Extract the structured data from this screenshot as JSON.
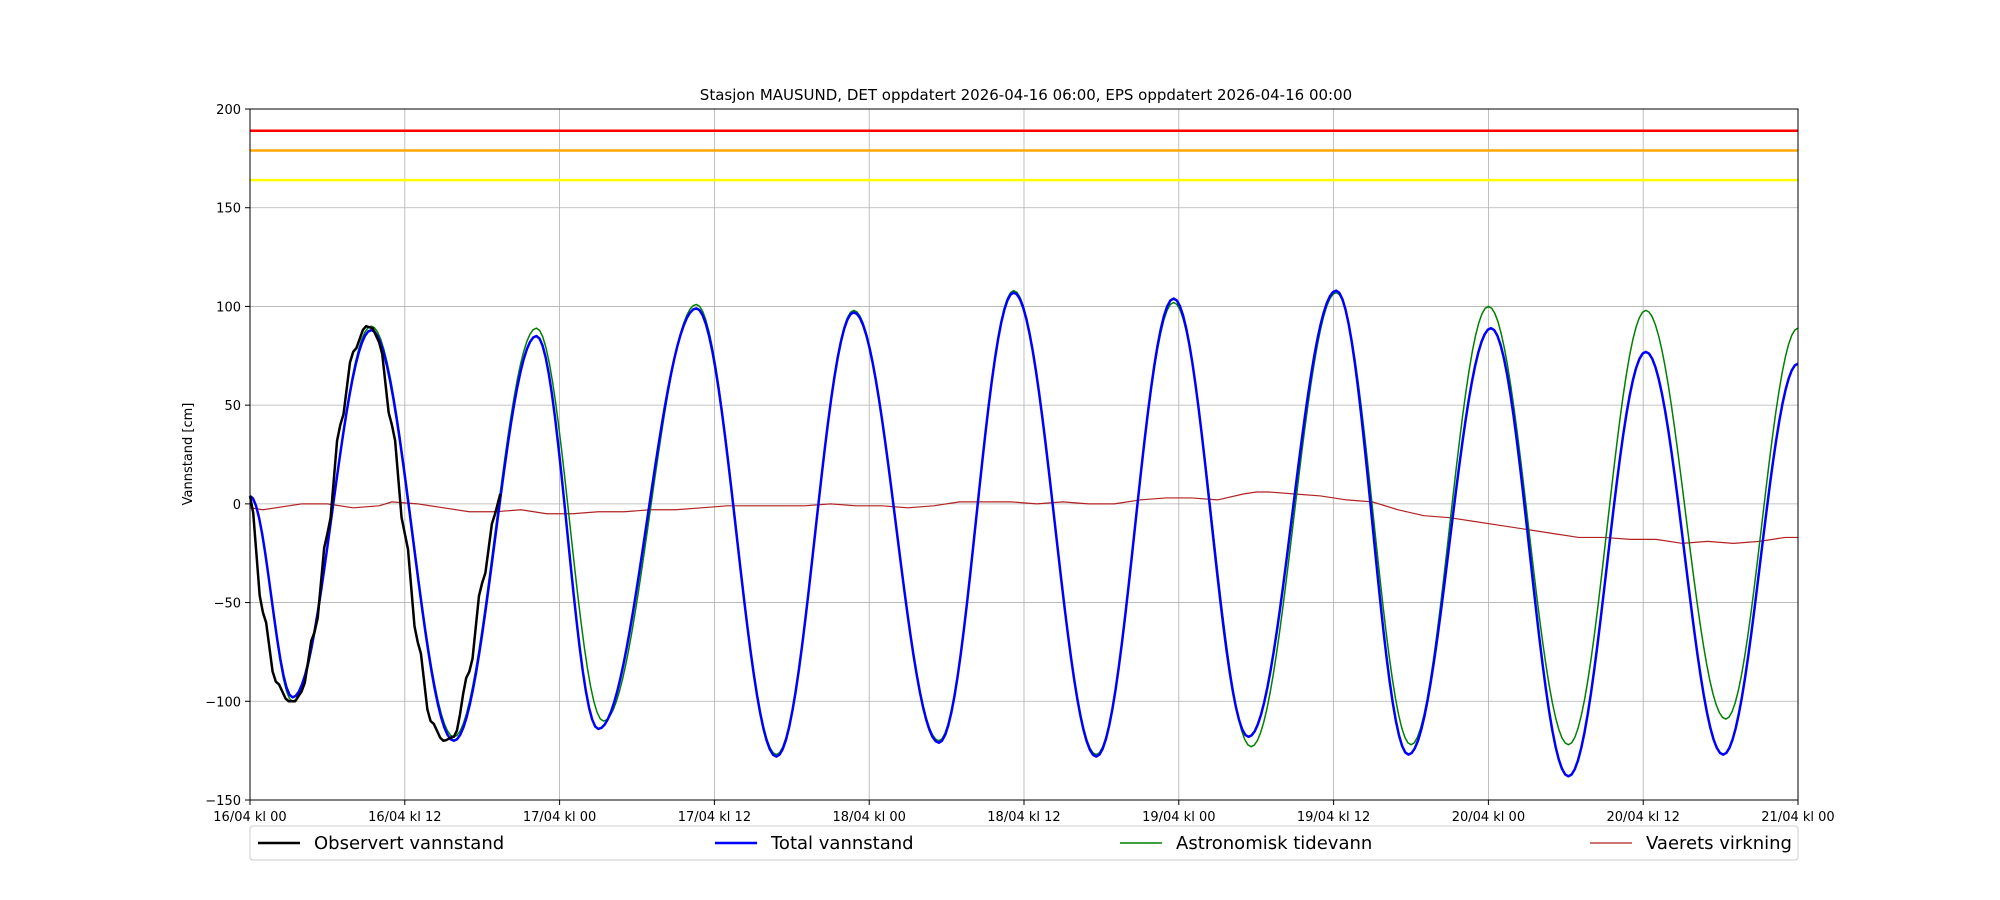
{
  "chart_data": {
    "type": "line",
    "title": "Stasjon MAUSUND, DET oppdatert 2026-04-16 06:00, EPS oppdatert 2026-04-16 00:00",
    "ylabel": "Vannstand [cm]",
    "xlabel": "",
    "xlim_hours": [
      0,
      120
    ],
    "ylim": [
      -150,
      200
    ],
    "grid": true,
    "legend_position": "bottom",
    "x_tick_hours": [
      0,
      12,
      24,
      36,
      48,
      60,
      72,
      84,
      96,
      108,
      120
    ],
    "x_tick_labels": [
      "16/04 kl 00",
      "16/04 kl 12",
      "17/04 kl 00",
      "17/04 kl 12",
      "18/04 kl 00",
      "18/04 kl 12",
      "19/04 kl 00",
      "19/04 kl 12",
      "20/04 kl 00",
      "20/04 kl 12",
      "21/04 kl 00"
    ],
    "y_ticks": [
      -150,
      -100,
      -50,
      0,
      50,
      100,
      150,
      200
    ],
    "y_tick_labels": [
      "−150",
      "−100",
      "−50",
      "0",
      "50",
      "100",
      "150",
      "200"
    ],
    "threshold_lines": [
      {
        "value": 189,
        "color": "#ff0000"
      },
      {
        "value": 179,
        "color": "#ffa500"
      },
      {
        "value": 164,
        "color": "#ffff00"
      }
    ],
    "series": [
      {
        "name": "Observert vannstand",
        "color": "#000000",
        "width": 2.5,
        "x": [
          0,
          1,
          2,
          3,
          3.5,
          4,
          5,
          6,
          7,
          8,
          9,
          9.5,
          10,
          11,
          12,
          13,
          14,
          15,
          15.8,
          17,
          18,
          19,
          19.4
        ],
        "y": [
          4,
          -55,
          -90,
          -100,
          -100,
          -95,
          -65,
          -15,
          40,
          77,
          90,
          89,
          82,
          40,
          -15,
          -70,
          -110,
          -120,
          -118,
          -85,
          -40,
          -5,
          5
        ]
      },
      {
        "name": "Total vannstand",
        "color": "#0000ff",
        "width": 2.5,
        "x": [
          0,
          3.3,
          9.4,
          15.8,
          22.2,
          27,
          34.6,
          40.8,
          46.8,
          53.4,
          59.2,
          65.6,
          71.6,
          77.4,
          84.2,
          89.8,
          96.2,
          102.2,
          108.2,
          114.2,
          120
        ],
        "y": [
          4,
          -98,
          88,
          -120,
          85,
          -114,
          99,
          -128,
          97,
          -121,
          107,
          -128,
          104,
          -118,
          108,
          -127,
          89,
          -138,
          77,
          -127,
          71
        ]
      },
      {
        "name": "Astronomisk tidevann",
        "color": "#008000",
        "width": 1.5,
        "x": [
          0,
          3.3,
          9.4,
          15.8,
          22.2,
          27.4,
          34.6,
          40.8,
          46.8,
          53.4,
          59.2,
          65.6,
          71.6,
          77.6,
          84.2,
          90,
          96,
          102.2,
          108.2,
          114.4,
          120
        ],
        "y": [
          4,
          -100,
          90,
          -118,
          89,
          -110,
          101,
          -127,
          98,
          -120,
          108,
          -127,
          102,
          -123,
          107,
          -122,
          100,
          -122,
          98,
          -109,
          89
        ]
      },
      {
        "name": "Vaerets virkning",
        "color": "#b22222",
        "width": 1.2,
        "x": [
          0,
          1,
          3,
          4,
          6,
          8,
          10,
          11,
          13,
          15,
          17,
          19,
          21,
          23,
          25,
          27,
          29,
          31,
          33,
          35,
          37,
          39,
          41,
          43,
          45,
          47,
          49,
          51,
          53,
          55,
          57,
          59,
          61,
          63,
          65,
          67,
          69,
          71,
          73,
          75,
          77,
          78,
          79,
          81,
          83,
          85,
          87,
          89,
          91,
          93,
          95,
          97,
          99,
          101,
          103,
          105,
          107,
          109,
          111,
          113,
          115,
          117,
          119,
          120
        ],
        "y": [
          -2,
          -3,
          -1,
          0,
          0,
          -2,
          -1,
          1,
          0,
          -2,
          -4,
          -4,
          -3,
          -5,
          -5,
          -4,
          -4,
          -3,
          -3,
          -2,
          -1,
          -1,
          -1,
          -1,
          0,
          -1,
          -1,
          -2,
          -1,
          1,
          1,
          1,
          0,
          1,
          0,
          0,
          2,
          3,
          3,
          2,
          5,
          6,
          6,
          5,
          4,
          2,
          1,
          -3,
          -6,
          -7,
          -9,
          -11,
          -13,
          -15,
          -17,
          -17,
          -18,
          -18,
          -20,
          -19,
          -20,
          -19,
          -17,
          -17
        ]
      }
    ]
  }
}
